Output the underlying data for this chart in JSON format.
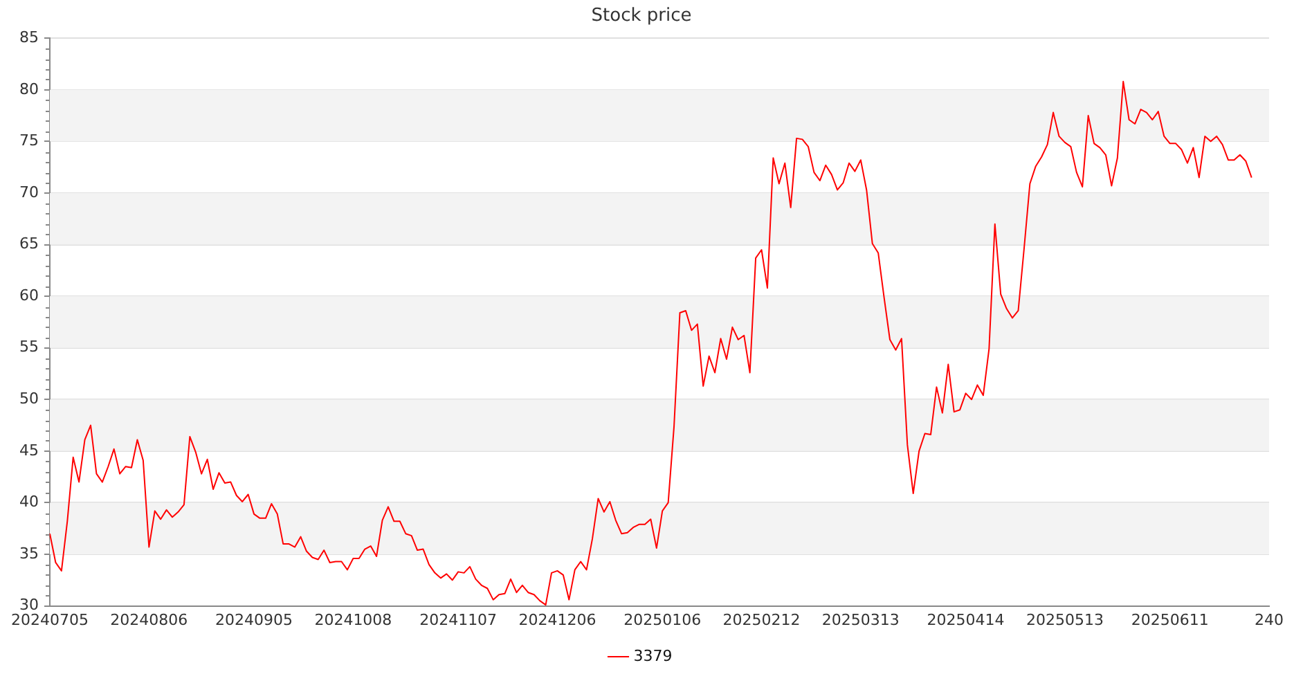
{
  "chart_data": {
    "type": "line",
    "title": "Stock price",
    "categories": [
      "20240705",
      null,
      null,
      null,
      null,
      null,
      null,
      null,
      null,
      null,
      null,
      null,
      null,
      null,
      null,
      null,
      null,
      "20240806",
      null,
      null,
      null,
      null,
      null,
      null,
      null,
      null,
      null,
      null,
      null,
      null,
      null,
      null,
      null,
      null,
      null,
      "20240905",
      null,
      null,
      null,
      null,
      null,
      null,
      null,
      null,
      null,
      null,
      null,
      null,
      null,
      null,
      null,
      null,
      "20241008",
      null,
      null,
      null,
      null,
      null,
      null,
      null,
      null,
      null,
      null,
      null,
      null,
      null,
      null,
      null,
      null,
      null,
      "20241107",
      null,
      null,
      null,
      null,
      null,
      null,
      null,
      null,
      null,
      null,
      null,
      null,
      null,
      null,
      null,
      null,
      "20241206",
      null,
      null,
      null,
      null,
      null,
      null,
      null,
      null,
      null,
      null,
      null,
      null,
      null,
      null,
      null,
      null,
      null,
      "20250106",
      null,
      null,
      null,
      null,
      null,
      null,
      null,
      null,
      null,
      null,
      null,
      null,
      null,
      null,
      null,
      null,
      "20250212",
      null,
      null,
      null,
      null,
      null,
      null,
      null,
      null,
      null,
      null,
      null,
      null,
      null,
      null,
      null,
      null,
      "20250313",
      null,
      null,
      null,
      null,
      null,
      null,
      null,
      null,
      null,
      null,
      null,
      null,
      null,
      null,
      null,
      null,
      null,
      "20250414",
      null,
      null,
      null,
      null,
      null,
      null,
      null,
      null,
      null,
      null,
      null,
      null,
      null,
      null,
      null,
      null,
      "20250513",
      null,
      null,
      null,
      null,
      null,
      null,
      null,
      null,
      null,
      null,
      null,
      null,
      null,
      null,
      null,
      null,
      null,
      "20250611",
      null,
      null,
      null,
      null,
      null,
      null,
      null,
      null,
      null,
      null,
      null,
      null,
      null,
      null,
      null,
      null,
      "240"
    ],
    "series": [
      {
        "name": "3379",
        "color": "#ff0000",
        "values": [
          37.0,
          34.2,
          33.4,
          38.2,
          44.4,
          42.0,
          46.1,
          47.5,
          42.8,
          42.0,
          43.5,
          45.2,
          42.8,
          43.5,
          43.4,
          46.1,
          44.1,
          35.7,
          39.2,
          38.4,
          39.3,
          38.6,
          39.1,
          39.8,
          46.4,
          44.9,
          42.8,
          44.2,
          41.3,
          42.9,
          41.9,
          42.0,
          40.7,
          40.1,
          40.8,
          38.9,
          38.5,
          38.5,
          39.9,
          38.9,
          36.0,
          36.0,
          35.7,
          36.7,
          35.3,
          34.7,
          34.5,
          35.4,
          34.2,
          34.3,
          34.3,
          33.5,
          34.6,
          34.6,
          35.5,
          35.8,
          34.8,
          38.3,
          39.6,
          38.2,
          38.2,
          37.0,
          36.8,
          35.4,
          35.5,
          34.0,
          33.2,
          32.7,
          33.1,
          32.5,
          33.3,
          33.2,
          33.8,
          32.6,
          32.0,
          31.7,
          30.6,
          31.1,
          31.2,
          32.6,
          31.3,
          32.0,
          31.3,
          31.1,
          30.5,
          30.1,
          33.2,
          33.4,
          33.0,
          30.6,
          33.5,
          34.3,
          33.5,
          36.5,
          40.4,
          39.1,
          40.1,
          38.3,
          37.0,
          37.1,
          37.6,
          37.9,
          37.9,
          38.4,
          35.6,
          39.2,
          40.0,
          47.4,
          58.4,
          58.6,
          56.7,
          57.3,
          51.3,
          54.2,
          52.6,
          55.9,
          53.9,
          57.0,
          55.8,
          56.2,
          52.6,
          63.7,
          64.5,
          60.8,
          73.4,
          70.9,
          72.9,
          68.6,
          75.3,
          75.2,
          74.5,
          72.0,
          71.2,
          72.7,
          71.8,
          70.3,
          71.0,
          72.9,
          72.1,
          73.2,
          70.3,
          65.1,
          64.2,
          59.9,
          55.8,
          54.8,
          55.9,
          45.6,
          40.9,
          45.0,
          46.7,
          46.6,
          51.2,
          48.7,
          53.4,
          48.8,
          49.0,
          50.6,
          50.0,
          51.4,
          50.4,
          54.9,
          67.0,
          60.2,
          58.8,
          57.9,
          58.6,
          64.6,
          70.9,
          72.6,
          73.5,
          74.7,
          77.8,
          75.5,
          74.9,
          74.5,
          72.0,
          70.6,
          77.5,
          74.8,
          74.4,
          73.7,
          70.7,
          73.4,
          80.8,
          77.1,
          76.7,
          78.1,
          77.8,
          77.1,
          77.9,
          75.5,
          74.8,
          74.8,
          74.2,
          72.9,
          74.4,
          71.5,
          75.5,
          75.0,
          75.5,
          74.7,
          73.2,
          73.2,
          73.7,
          73.1,
          71.5,
          null,
          null,
          null
        ]
      }
    ],
    "ylim": [
      30,
      85
    ],
    "yticks": [
      30,
      {
        "value": 31,
        "label": null
      },
      {
        "value": 32,
        "label": null
      },
      {
        "value": 33,
        "label": null
      },
      {
        "value": 34,
        "label": null
      },
      35,
      {
        "value": 36,
        "label": null
      },
      {
        "value": 37,
        "label": null
      },
      {
        "value": 38,
        "label": null
      },
      {
        "value": 39,
        "label": null
      },
      40,
      {
        "value": 41,
        "label": null
      },
      {
        "value": 42,
        "label": null
      },
      {
        "value": 43,
        "label": null
      },
      {
        "value": 44,
        "label": null
      },
      45,
      {
        "value": 46,
        "label": null
      },
      {
        "value": 47,
        "label": null
      },
      {
        "value": 48,
        "label": null
      },
      {
        "value": 49,
        "label": null
      },
      50,
      {
        "value": 51,
        "label": null
      },
      {
        "value": 52,
        "label": null
      },
      {
        "value": 53,
        "label": null
      },
      {
        "value": 54,
        "label": null
      },
      55,
      {
        "value": 56,
        "label": null
      },
      {
        "value": 57,
        "label": null
      },
      {
        "value": 58,
        "label": null
      },
      {
        "value": 59,
        "label": null
      },
      60,
      {
        "value": 61,
        "label": null
      },
      {
        "value": 62,
        "label": null
      },
      {
        "value": 63,
        "label": null
      },
      {
        "value": 64,
        "label": null
      },
      65,
      {
        "value": 66,
        "label": null
      },
      {
        "value": 67,
        "label": null
      },
      {
        "value": 68,
        "label": null
      },
      {
        "value": 69,
        "label": null
      },
      70,
      {
        "value": 71,
        "label": null
      },
      {
        "value": 72,
        "label": null
      },
      {
        "value": 73,
        "label": null
      },
      {
        "value": 74,
        "label": null
      },
      75,
      {
        "value": 76,
        "label": null
      },
      {
        "value": 77,
        "label": null
      },
      {
        "value": 78,
        "label": null
      },
      {
        "value": 79,
        "label": null
      },
      80,
      {
        "value": 81,
        "label": null
      },
      {
        "value": 82,
        "label": null
      },
      {
        "value": 83,
        "label": null
      },
      {
        "value": 84,
        "label": null
      },
      85
    ],
    "bands": [
      {
        "axis": "y",
        "from": 35,
        "to": 40,
        "color": "#f3f3f3"
      },
      {
        "axis": "y",
        "from": 45,
        "to": 50,
        "color": "#f3f3f3"
      },
      {
        "axis": "y",
        "from": 55,
        "to": 60,
        "color": "#f3f3f3"
      },
      {
        "axis": "y",
        "from": 65,
        "to": 70,
        "color": "#f3f3f3"
      },
      {
        "axis": "y",
        "from": 75,
        "to": 80,
        "color": "#f3f3f3"
      }
    ],
    "grid": "y",
    "legend": "bottom",
    "marker": "none",
    "line_style": "solid"
  }
}
